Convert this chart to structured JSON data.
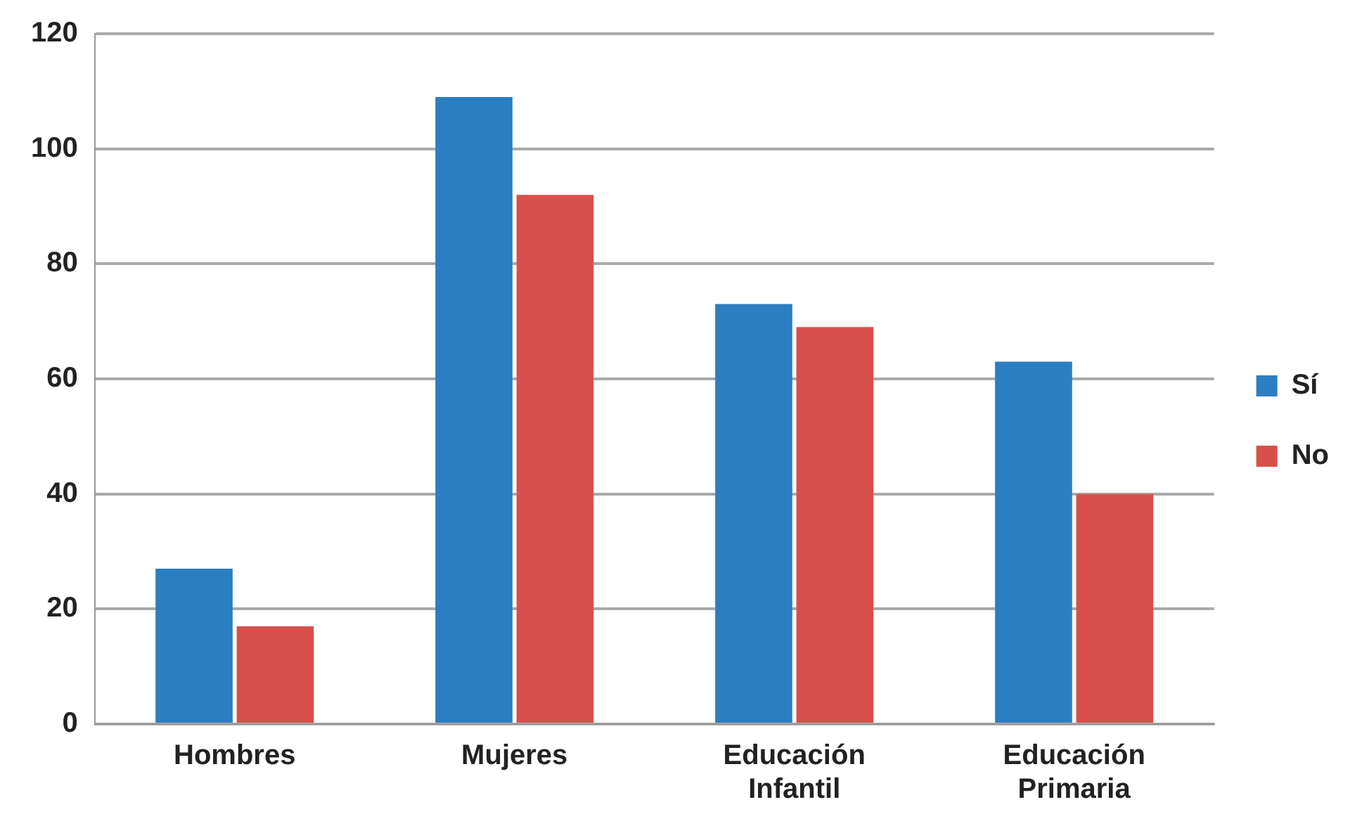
{
  "chart_data": {
    "type": "bar",
    "categories": [
      "Hombres",
      "Mujeres",
      "Educación Infantil",
      "Educación Primaria"
    ],
    "series": [
      {
        "name": "Sí",
        "color": "#2b7ec1",
        "values": [
          27,
          109,
          73,
          63
        ]
      },
      {
        "name": "No",
        "color": "#d94f4c",
        "values": [
          17,
          92,
          69,
          40
        ]
      }
    ],
    "ylim": [
      0,
      120
    ],
    "yticks": [
      0,
      20,
      40,
      60,
      80,
      100,
      120
    ],
    "grid": "y",
    "legend": "right"
  }
}
